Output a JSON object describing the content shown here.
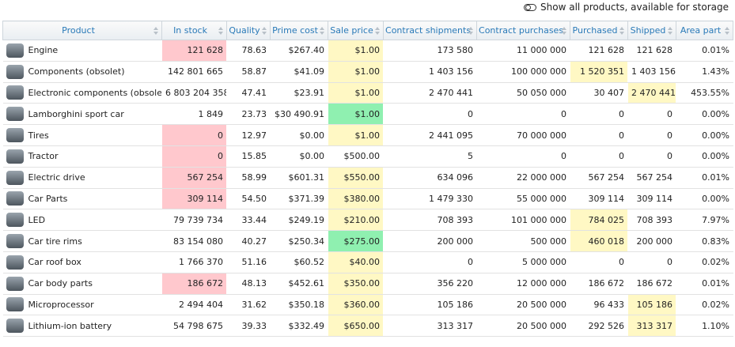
{
  "toolbar": {
    "toggle_label": "Show all products, available for storage"
  },
  "table": {
    "columns": [
      "Product",
      "In stock",
      "Quality",
      "Prime cost",
      "Sale price",
      "Contract shipments",
      "Contract purchases",
      "Purchased",
      "Shipped",
      "Area part"
    ],
    "rows": [
      [
        "Engine",
        "121 628",
        "78.63",
        "$267.40",
        "$1.00",
        "173 580",
        "11 000 000",
        "121 628",
        "121 628",
        "0.01%"
      ],
      [
        "Components (obsolet)",
        "142 801 665",
        "58.87",
        "$41.09",
        "$1.00",
        "1 403 156",
        "100 000 000",
        "1 520 351",
        "1 403 156",
        "1.43%"
      ],
      [
        "Electronic components (obsolet)",
        "6 803 204 358",
        "47.41",
        "$23.91",
        "$1.00",
        "2 470 441",
        "50 050 000",
        "30 407",
        "2 470 441",
        "453.55%"
      ],
      [
        "Lamborghini sport car",
        "1 849",
        "23.73",
        "$30 490.91",
        "$1.00",
        "0",
        "0",
        "0",
        "0",
        "0.00%"
      ],
      [
        "Tires",
        "0",
        "12.97",
        "$0.00",
        "$1.00",
        "2 441 095",
        "70 000 000",
        "0",
        "0",
        "0.00%"
      ],
      [
        "Tractor",
        "0",
        "15.85",
        "$0.00",
        "$500.00",
        "5",
        "0",
        "0",
        "0",
        "0.00%"
      ],
      [
        "Electric drive",
        "567 254",
        "58.99",
        "$601.31",
        "$550.00",
        "634 096",
        "22 000 000",
        "567 254",
        "567 254",
        "0.01%"
      ],
      [
        "Car Parts",
        "309 114",
        "54.50",
        "$371.39",
        "$380.00",
        "1 479 330",
        "55 000 000",
        "309 114",
        "309 114",
        "0.00%"
      ],
      [
        "LED",
        "79 739 734",
        "33.44",
        "$249.19",
        "$210.00",
        "708 393",
        "101 000 000",
        "784 025",
        "708 393",
        "7.97%"
      ],
      [
        "Car tire rims",
        "83 154 080",
        "40.27",
        "$250.34",
        "$275.00",
        "200 000",
        "500 000",
        "460 018",
        "200 000",
        "0.83%"
      ],
      [
        "Car roof box",
        "1 766 370",
        "51.16",
        "$60.52",
        "$40.00",
        "0",
        "5 000 000",
        "0",
        "0",
        "0.02%"
      ],
      [
        "Car body parts",
        "186 672",
        "48.13",
        "$452.61",
        "$350.00",
        "356 220",
        "12 000 000",
        "186 672",
        "186 672",
        "0.01%"
      ],
      [
        "Microprocessor",
        "2 494 404",
        "31.62",
        "$350.18",
        "$360.00",
        "105 186",
        "20 500 000",
        "96 433",
        "105 186",
        "0.02%"
      ],
      [
        "Lithium-ion battery",
        "54 798 675",
        "39.33",
        "$332.49",
        "$650.00",
        "313 317",
        "20 500 000",
        "292 526",
        "313 317",
        "1.10%"
      ]
    ],
    "highlights": [
      {
        "color": "#ffc8cd",
        "cells": [
          [
            0,
            1
          ],
          [
            4,
            1
          ],
          [
            5,
            1
          ],
          [
            6,
            1
          ],
          [
            7,
            1
          ],
          [
            11,
            1
          ]
        ]
      },
      {
        "color": "#fff8c4",
        "cells": [
          [
            0,
            4
          ],
          [
            1,
            4
          ],
          [
            2,
            4
          ],
          [
            4,
            4
          ],
          [
            6,
            4
          ],
          [
            7,
            4
          ],
          [
            8,
            4
          ],
          [
            10,
            4
          ],
          [
            11,
            4
          ],
          [
            12,
            4
          ],
          [
            13,
            4
          ],
          [
            1,
            7
          ],
          [
            8,
            7
          ],
          [
            9,
            7
          ],
          [
            2,
            8
          ],
          [
            12,
            8
          ],
          [
            13,
            8
          ]
        ]
      },
      {
        "color": "#8ff0b0",
        "cells": [
          [
            3,
            4
          ],
          [
            9,
            4
          ]
        ]
      }
    ]
  }
}
